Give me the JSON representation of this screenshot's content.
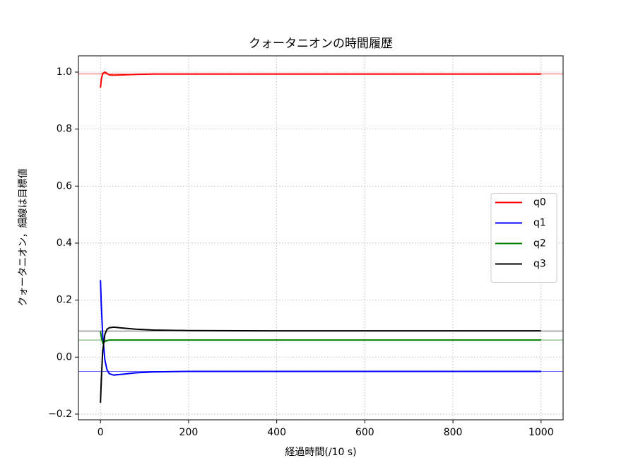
{
  "chart_data": {
    "type": "line",
    "title": "クォータニオンの時間履歴",
    "x_label": "経過時間(/10 s)",
    "y_label": "クォータニオン，細線は目標値",
    "x": [
      0,
      2,
      5,
      10,
      15,
      20,
      30,
      50,
      80,
      120,
      200,
      400,
      600,
      800,
      1000
    ],
    "series": [
      {
        "name": "q0",
        "color": "#ff0000",
        "values": [
          0.945,
          0.975,
          0.995,
          1.0,
          0.995,
          0.99,
          0.989,
          0.99,
          0.992,
          0.993,
          0.993,
          0.993,
          0.993,
          0.993,
          0.993
        ]
      },
      {
        "name": "q1",
        "color": "#0000ff",
        "values": [
          0.27,
          0.18,
          0.08,
          -0.01,
          -0.045,
          -0.058,
          -0.063,
          -0.06,
          -0.055,
          -0.052,
          -0.05,
          -0.05,
          -0.05,
          -0.05,
          -0.05
        ]
      },
      {
        "name": "q2",
        "color": "#008000",
        "values": [
          0.09,
          0.07,
          0.05,
          0.055,
          0.058,
          0.06,
          0.06,
          0.06,
          0.06,
          0.06,
          0.06,
          0.06,
          0.06,
          0.06,
          0.06
        ]
      },
      {
        "name": "q3",
        "color": "#000000",
        "values": [
          -0.16,
          -0.08,
          0.02,
          0.08,
          0.098,
          0.103,
          0.105,
          0.102,
          0.098,
          0.095,
          0.093,
          0.092,
          0.092,
          0.092,
          0.092
        ]
      }
    ],
    "reference_lines": [
      {
        "value": 0.993,
        "color": "#ff0000"
      },
      {
        "value": -0.05,
        "color": "#0000ff"
      },
      {
        "value": 0.06,
        "color": "#008000"
      },
      {
        "value": 0.092,
        "color": "#000000"
      }
    ],
    "xlim": [
      -50,
      1050
    ],
    "ylim": [
      -0.22,
      1.057
    ],
    "xticks": [
      0,
      200,
      400,
      600,
      800,
      1000
    ],
    "yticks": [
      {
        "value": -0.2,
        "label": "−0.2"
      },
      {
        "value": 0.0,
        "label": "0.0"
      },
      0.2,
      0.4,
      0.6,
      0.8,
      {
        "value": 1.0,
        "label": "1.0"
      }
    ],
    "grid": true,
    "legend": "center right"
  }
}
